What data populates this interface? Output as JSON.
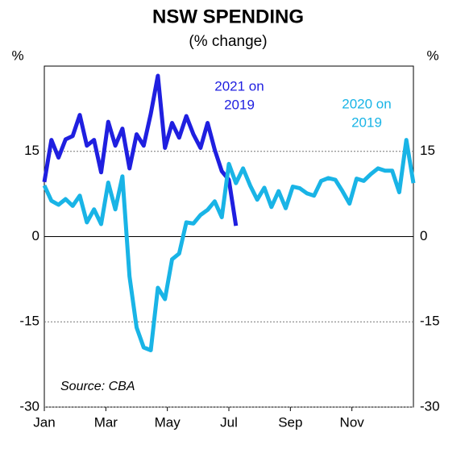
{
  "chart_data": {
    "type": "line",
    "title": "NSW SPENDING",
    "subtitle": "(% change)",
    "ylabel": "%",
    "y2label": "%",
    "source": "Source: CBA",
    "x": [
      0,
      0.2308,
      0.4615,
      0.6923,
      0.9231,
      1.1538,
      1.3846,
      1.6154,
      1.8462,
      2.0769,
      2.3077,
      2.5385,
      2.7692,
      3,
      3.2308,
      3.4615,
      3.6923,
      3.9231,
      4.1538,
      4.3846,
      4.6154,
      4.8462,
      5.0769,
      5.3077,
      5.5385,
      5.7692,
      6,
      6.2308,
      6.4615,
      6.6923,
      6.9231,
      7.1538,
      7.3846,
      7.6154,
      7.8462,
      8.0769,
      8.3077,
      8.5385,
      8.7692,
      9,
      9.2308,
      9.4615,
      9.6923,
      9.9231,
      10.1538,
      10.3846,
      10.6154,
      10.8462,
      11.0769,
      11.3077,
      11.5385,
      11.7692,
      12
    ],
    "xlim": [
      0,
      12
    ],
    "xticks": [
      {
        "value": 0,
        "label": "Jan"
      },
      {
        "value": 2,
        "label": "Mar"
      },
      {
        "value": 4,
        "label": "May"
      },
      {
        "value": 6,
        "label": "Jul"
      },
      {
        "value": 8,
        "label": "Sep"
      },
      {
        "value": 10,
        "label": "Nov"
      }
    ],
    "ylim": [
      -30,
      30
    ],
    "yticks": [
      -30,
      -15,
      0,
      15
    ],
    "y2lim": [
      -30,
      30
    ],
    "y2ticks": [
      -30,
      -15,
      0,
      15
    ],
    "grid": true,
    "series": [
      {
        "name": "2021 on 2019",
        "label": [
          "2021 on",
          "2019"
        ],
        "color": "#1f1fe0",
        "values": [
          9.6,
          17,
          13.9,
          17.1,
          17.7,
          21.4,
          16,
          17,
          11.3,
          20.2,
          16,
          19,
          12,
          18,
          16,
          21.6,
          28.3,
          15.6,
          20,
          17.4,
          21.2,
          18,
          15.6,
          20,
          15.3,
          11.5,
          10,
          1.9,
          null,
          null,
          null,
          null,
          null,
          null,
          null,
          null,
          null,
          null,
          null,
          null,
          null,
          null,
          null,
          null,
          null,
          null,
          null,
          null,
          null,
          null,
          null,
          null,
          null
        ]
      },
      {
        "name": "2020 on 2019",
        "label": [
          "2020 on",
          "2019"
        ],
        "color": "#19b4e6",
        "values": [
          9,
          6.3,
          5.6,
          6.6,
          5.4,
          7.2,
          2.5,
          4.8,
          2.2,
          9.5,
          4.8,
          10.6,
          -7,
          -16,
          -19.5,
          -20,
          -9,
          -11,
          -4,
          -3,
          2.5,
          2.3,
          3.8,
          4.7,
          6.2,
          3.4,
          12.8,
          9.4,
          12,
          9,
          6.5,
          8.6,
          5.2,
          8,
          5,
          8.8,
          8.5,
          7.6,
          7.2,
          9.8,
          10.3,
          10,
          8,
          5.8,
          10.2,
          9.8,
          11,
          12,
          11.6,
          11.6,
          7.8,
          17,
          9.4
        ]
      }
    ]
  }
}
